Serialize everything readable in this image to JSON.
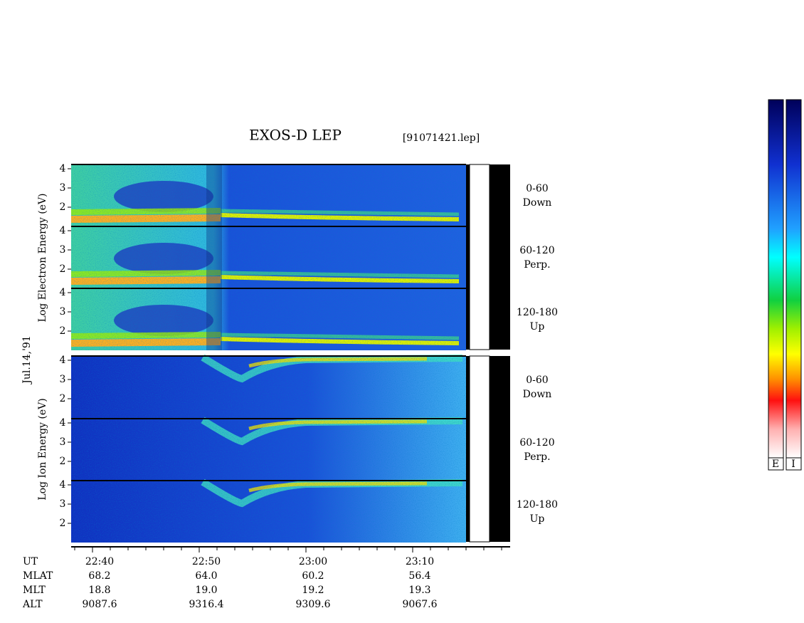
{
  "title": "EXOS-D LEP",
  "file": "[91071421.lep]",
  "date": "Jul.14,'91",
  "electron_axis_label": "Log Electron Energy (eV)",
  "ion_axis_label": "Log Ion Energy (eV)",
  "electron_panels": [
    {
      "ticks": [
        "4",
        "3",
        "2"
      ],
      "labels": [
        "0-60",
        "Down"
      ]
    },
    {
      "ticks": [
        "4",
        "3",
        "2"
      ],
      "labels": [
        "60-120",
        "Perp."
      ]
    },
    {
      "ticks": [
        "4",
        "3",
        "2"
      ],
      "labels": [
        "120-180",
        "Up"
      ]
    }
  ],
  "ion_panels": [
    {
      "ticks": [
        "4",
        "3",
        "2"
      ],
      "labels": [
        "0-60",
        "Down"
      ]
    },
    {
      "ticks": [
        "4",
        "3",
        "2"
      ],
      "labels": [
        "60-120",
        "Perp."
      ]
    },
    {
      "ticks": [
        "4",
        "3",
        "2"
      ],
      "labels": [
        "120-180",
        "Up"
      ]
    }
  ],
  "x_axis": {
    "rows": [
      {
        "name": "UT",
        "values": [
          "22:40",
          "22:50",
          "23:00",
          "23:10"
        ]
      },
      {
        "name": "MLAT",
        "values": [
          "68.2",
          "64.0",
          "60.2",
          "56.4"
        ]
      },
      {
        "name": "MLT",
        "values": [
          "18.8",
          "19.0",
          "19.2",
          "19.3"
        ]
      },
      {
        "name": "ALT",
        "values": [
          "9087.6",
          "9316.4",
          "9309.6",
          "9067.6"
        ]
      }
    ]
  },
  "colorbars": [
    "E",
    "I"
  ]
}
